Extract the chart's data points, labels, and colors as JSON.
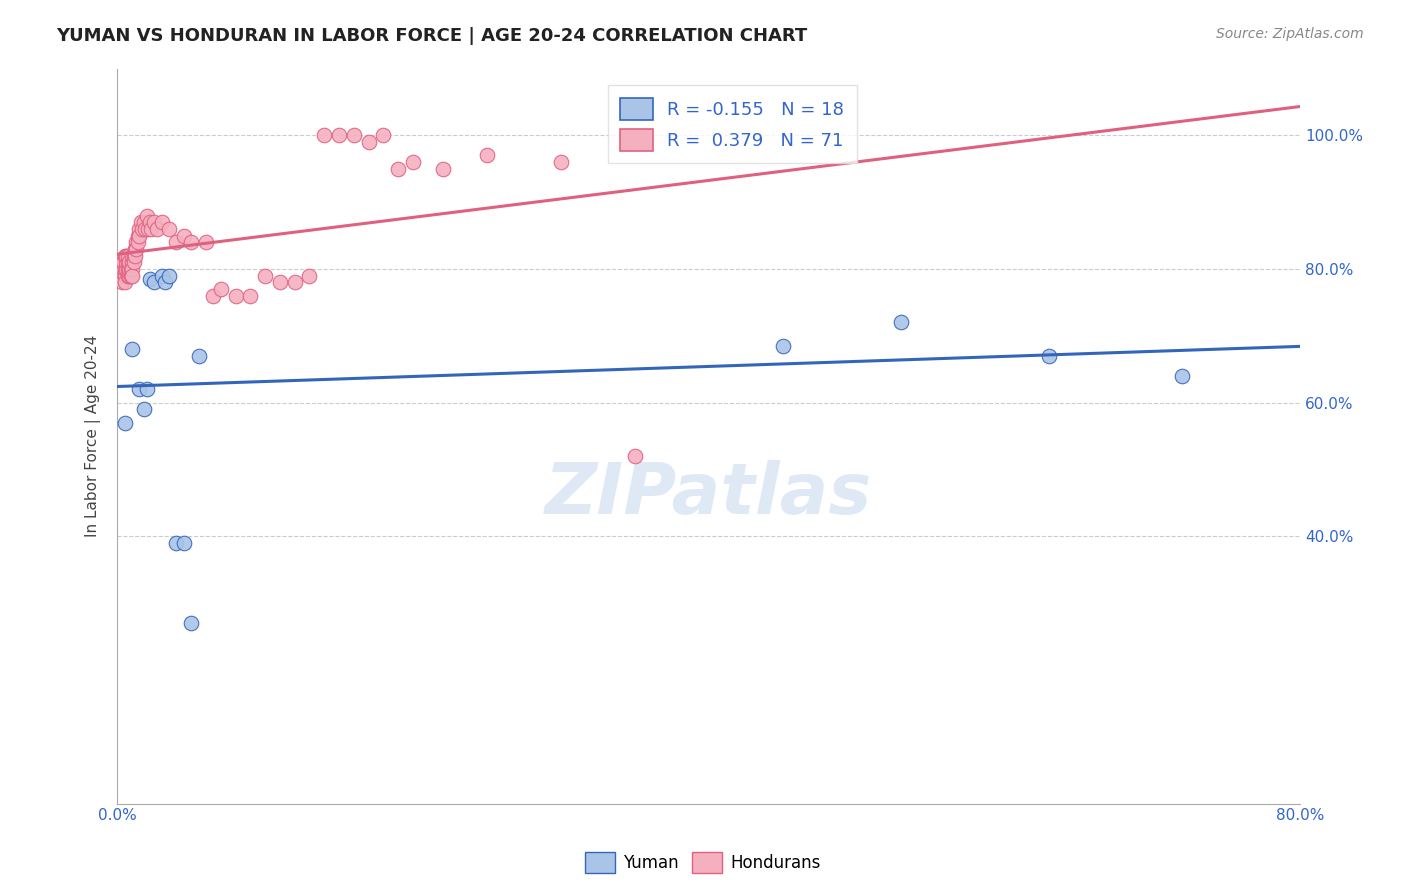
{
  "title": "YUMAN VS HONDURAN IN LABOR FORCE | AGE 20-24 CORRELATION CHART",
  "source": "Source: ZipAtlas.com",
  "ylabel": "In Labor Force | Age 20-24",
  "xlim": [
    0.0,
    0.8
  ],
  "ylim": [
    0.0,
    1.1
  ],
  "ytick_values": [
    0.4,
    0.6,
    0.8,
    1.0
  ],
  "ytick_labels": [
    "40.0%",
    "60.0%",
    "80.0%",
    "100.0%"
  ],
  "xtick_values": [
    0.0,
    0.1,
    0.2,
    0.3,
    0.4,
    0.5,
    0.6,
    0.7,
    0.8
  ],
  "xtick_labels": [
    "0.0%",
    "",
    "",
    "",
    "",
    "",
    "",
    "",
    "80.0%"
  ],
  "legend_labels": [
    "Yuman",
    "Hondurans"
  ],
  "yuman_color": "#aac4e8",
  "honduran_color": "#f5b0c0",
  "yuman_line_color": "#3366bb",
  "honduran_line_color": "#e06080",
  "R_yuman": "-0.155",
  "N_yuman": "18",
  "R_honduran": "0.379",
  "N_honduran": "71",
  "yuman_x": [
    0.005,
    0.01,
    0.015,
    0.018,
    0.02,
    0.022,
    0.025,
    0.03,
    0.032,
    0.035,
    0.04,
    0.045,
    0.05,
    0.055,
    0.45,
    0.53,
    0.63,
    0.72
  ],
  "yuman_y": [
    0.57,
    0.68,
    0.62,
    0.59,
    0.62,
    0.785,
    0.78,
    0.79,
    0.78,
    0.79,
    0.39,
    0.39,
    0.27,
    0.67,
    0.685,
    0.72,
    0.67,
    0.64
  ],
  "honduran_x": [
    0.002,
    0.003,
    0.003,
    0.004,
    0.004,
    0.005,
    0.005,
    0.005,
    0.005,
    0.006,
    0.006,
    0.006,
    0.007,
    0.007,
    0.007,
    0.007,
    0.008,
    0.008,
    0.008,
    0.008,
    0.009,
    0.009,
    0.01,
    0.01,
    0.01,
    0.01,
    0.011,
    0.011,
    0.012,
    0.012,
    0.013,
    0.013,
    0.014,
    0.014,
    0.015,
    0.015,
    0.016,
    0.017,
    0.018,
    0.019,
    0.02,
    0.021,
    0.022,
    0.023,
    0.025,
    0.027,
    0.03,
    0.035,
    0.04,
    0.045,
    0.05,
    0.06,
    0.065,
    0.07,
    0.08,
    0.09,
    0.1,
    0.11,
    0.12,
    0.13,
    0.14,
    0.15,
    0.16,
    0.17,
    0.18,
    0.19,
    0.2,
    0.22,
    0.25,
    0.3,
    0.35
  ],
  "honduran_y": [
    0.79,
    0.795,
    0.78,
    0.8,
    0.81,
    0.79,
    0.8,
    0.82,
    0.78,
    0.8,
    0.81,
    0.82,
    0.79,
    0.8,
    0.81,
    0.82,
    0.79,
    0.795,
    0.8,
    0.81,
    0.79,
    0.8,
    0.81,
    0.82,
    0.8,
    0.79,
    0.82,
    0.81,
    0.83,
    0.82,
    0.84,
    0.83,
    0.85,
    0.84,
    0.86,
    0.85,
    0.87,
    0.86,
    0.87,
    0.86,
    0.88,
    0.86,
    0.87,
    0.86,
    0.87,
    0.86,
    0.87,
    0.86,
    0.84,
    0.85,
    0.84,
    0.84,
    0.76,
    0.77,
    0.76,
    0.76,
    0.79,
    0.78,
    0.78,
    0.79,
    1.0,
    1.0,
    1.0,
    0.99,
    1.0,
    0.95,
    0.96,
    0.95,
    0.97,
    0.96,
    0.52
  ],
  "watermark_text": "ZIPatlas",
  "background_color": "#ffffff",
  "grid_color": "#cccccc",
  "title_fontsize": 13,
  "source_fontsize": 10,
  "tick_fontsize": 11,
  "ylabel_fontsize": 11,
  "legend_fontsize": 13
}
